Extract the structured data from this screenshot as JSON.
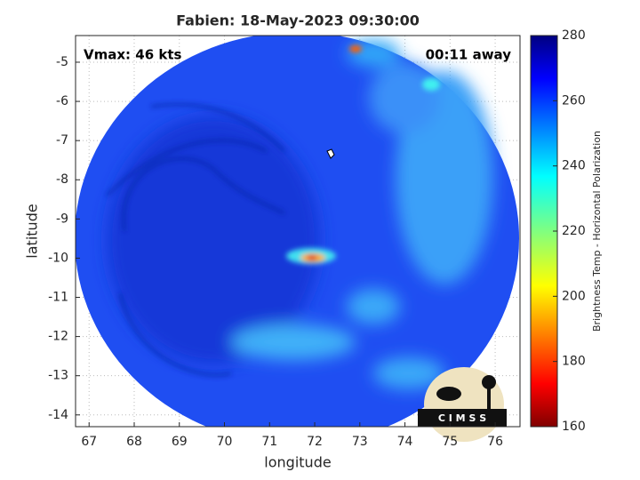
{
  "chart_data": {
    "type": "map",
    "title": "Fabien: 18-May-2023 09:30:00",
    "annotations": [
      "Vmax: 46 kts",
      "00:11 away"
    ],
    "xlabel": "longitude",
    "ylabel": "latitude",
    "xlim": [
      66.7,
      76.55
    ],
    "ylim": [
      -14.3,
      -4.32
    ],
    "xticks": [
      67,
      68,
      69,
      70,
      71,
      72,
      73,
      74,
      75,
      76
    ],
    "yticks": [
      -14,
      -13,
      -12,
      -11,
      -10,
      -9,
      -8,
      -7,
      -6,
      -5
    ],
    "grid": true,
    "colorbar": {
      "label": "Brightness Temp - Horizontal Polarization",
      "lim": [
        160,
        280
      ],
      "ticks": [
        160,
        180,
        200,
        220,
        240,
        260,
        280
      ]
    },
    "logo": "C I M S S"
  }
}
